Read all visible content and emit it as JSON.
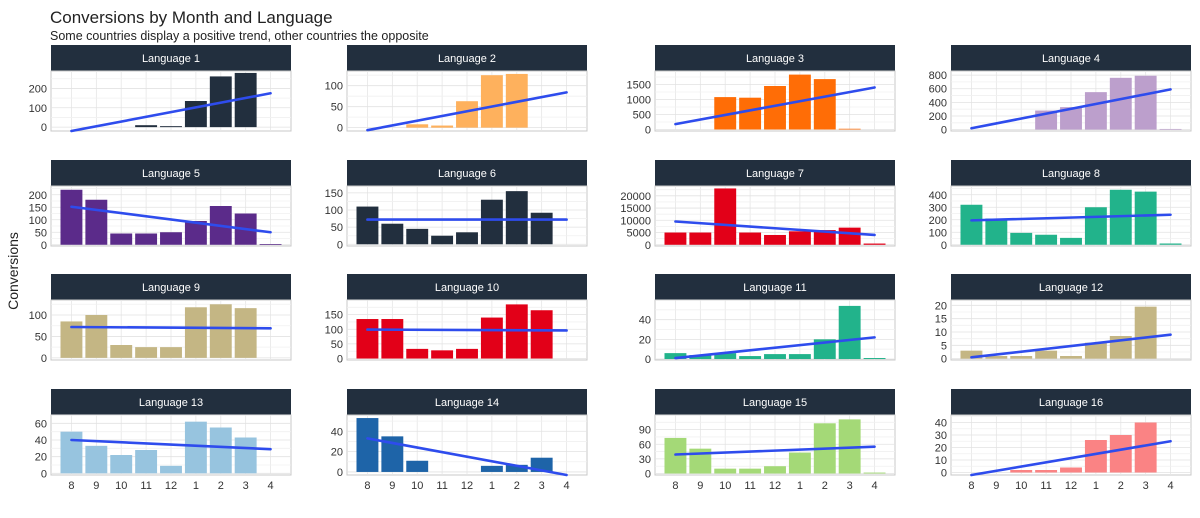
{
  "title": "Conversions by Month and Language",
  "subtitle": "Some countries display a positive trend, other countries the opposite",
  "ylabel": "Conversions",
  "chart_data": {
    "type": "bar",
    "categories": [
      "8",
      "9",
      "10",
      "11",
      "12",
      "1",
      "2",
      "3",
      "4"
    ],
    "facets": [
      {
        "name": "Language 1",
        "color": "#222f3e",
        "ylim": [
          -20,
          290
        ],
        "yticks": [
          0,
          100,
          200
        ],
        "values": [
          null,
          null,
          null,
          10,
          5,
          135,
          262,
          280,
          null
        ],
        "trend": [
          -20,
          175
        ]
      },
      {
        "name": "Language 2",
        "color": "#feb15d",
        "ylim": [
          -8,
          135
        ],
        "yticks": [
          0,
          50,
          100
        ],
        "values": [
          null,
          null,
          8,
          5,
          63,
          125,
          128,
          null,
          null
        ],
        "trend": [
          -6,
          84
        ]
      },
      {
        "name": "Language 3",
        "color": "#ff6d06",
        "ylim": [
          -50,
          1950
        ],
        "yticks": [
          0,
          500,
          1000,
          1500
        ],
        "values": [
          null,
          null,
          1080,
          1060,
          1450,
          1830,
          1680,
          25,
          null
        ],
        "trend": [
          180,
          1400
        ]
      },
      {
        "name": "Language 4",
        "color": "#bc9fcc",
        "ylim": [
          -20,
          860
        ],
        "yticks": [
          0,
          200,
          400,
          600,
          800
        ],
        "values": [
          null,
          null,
          null,
          280,
          330,
          550,
          760,
          790,
          10
        ],
        "trend": [
          20,
          590
        ]
      },
      {
        "name": "Language 5",
        "color": "#5b2b8a",
        "ylim": [
          -5,
          235
        ],
        "yticks": [
          0,
          50,
          100,
          150,
          200
        ],
        "values": [
          220,
          180,
          45,
          45,
          50,
          95,
          155,
          125,
          3
        ],
        "trend": [
          152,
          50
        ]
      },
      {
        "name": "Language 6",
        "color": "#222f3e",
        "ylim": [
          -5,
          170
        ],
        "yticks": [
          0,
          50,
          100,
          150
        ],
        "values": [
          110,
          60,
          45,
          25,
          35,
          130,
          155,
          92,
          null
        ],
        "trend": [
          72,
          72
        ]
      },
      {
        "name": "Language 7",
        "color": "#e20018",
        "ylim": [
          -500,
          24000
        ],
        "yticks": [
          0,
          5000,
          10000,
          15000,
          20000
        ],
        "values": [
          5000,
          5000,
          23000,
          5000,
          4000,
          5500,
          6000,
          7000,
          500
        ],
        "trend": [
          9500,
          4000
        ]
      },
      {
        "name": "Language 8",
        "color": "#22b38b",
        "ylim": [
          -10,
          470
        ],
        "yticks": [
          0,
          100,
          200,
          300,
          400
        ],
        "values": [
          320,
          210,
          95,
          80,
          55,
          300,
          440,
          425,
          10
        ],
        "trend": [
          195,
          240
        ]
      },
      {
        "name": "Language 9",
        "color": "#c4b684",
        "ylim": [
          -5,
          135
        ],
        "yticks": [
          0,
          50,
          100
        ],
        "values": [
          85,
          100,
          30,
          25,
          25,
          118,
          125,
          116,
          null
        ],
        "trend": [
          72,
          69
        ]
      },
      {
        "name": "Language 10",
        "color": "#e20018",
        "ylim": [
          -5,
          200
        ],
        "yticks": [
          0,
          50,
          100,
          150
        ],
        "values": [
          135,
          135,
          33,
          28,
          33,
          140,
          185,
          165,
          null
        ],
        "trend": [
          99,
          96
        ]
      },
      {
        "name": "Language 11",
        "color": "#22b38b",
        "ylim": [
          -1,
          60
        ],
        "yticks": [
          0,
          20,
          40
        ],
        "values": [
          6,
          4,
          6,
          3,
          5,
          5,
          20,
          54,
          1
        ],
        "trend": [
          1,
          22
        ]
      },
      {
        "name": "Language 12",
        "color": "#c4b684",
        "ylim": [
          -0.5,
          22
        ],
        "yticks": [
          0,
          5,
          10,
          15,
          20
        ],
        "values": [
          3,
          1,
          1,
          3,
          1,
          6,
          8.5,
          19.5,
          null
        ],
        "trend": [
          0.5,
          9
        ]
      },
      {
        "name": "Language 13",
        "color": "#97c4df",
        "ylim": [
          -2,
          70
        ],
        "yticks": [
          0,
          20,
          40,
          60
        ],
        "values": [
          50,
          33,
          22,
          28,
          9,
          62,
          55,
          43,
          null
        ],
        "trend": [
          40,
          29
        ]
      },
      {
        "name": "Language 14",
        "color": "#1e64a8",
        "ylim": [
          -3,
          56
        ],
        "yticks": [
          0,
          20,
          40
        ],
        "values": [
          53,
          35,
          11,
          null,
          null,
          6,
          7,
          14,
          null
        ],
        "trend": [
          33,
          -3
        ]
      },
      {
        "name": "Language 15",
        "color": "#a4d977",
        "ylim": [
          -3,
          120
        ],
        "yticks": [
          0,
          30,
          60,
          90
        ],
        "values": [
          73,
          51,
          10,
          10,
          15,
          43,
          103,
          111,
          2
        ],
        "trend": [
          39,
          55
        ]
      },
      {
        "name": "Language 16",
        "color": "#fa8384",
        "ylim": [
          -2,
          46
        ],
        "yticks": [
          0,
          10,
          20,
          30,
          40
        ],
        "values": [
          null,
          null,
          2,
          2,
          4,
          26,
          30,
          40,
          null
        ],
        "trend": [
          -2,
          25
        ]
      }
    ]
  }
}
